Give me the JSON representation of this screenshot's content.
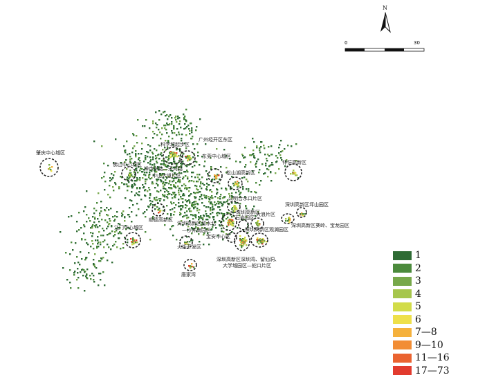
{
  "north_arrow": {
    "letter": "N",
    "icon": "north-arrow-icon"
  },
  "scale_bar": {
    "labels": [
      "0",
      "30"
    ]
  },
  "legend": {
    "items": [
      {
        "label": "1",
        "color": "#2e6b34"
      },
      {
        "label": "2",
        "color": "#4b8a3c"
      },
      {
        "label": "3",
        "color": "#77a84a"
      },
      {
        "label": "4",
        "color": "#a6c64c"
      },
      {
        "label": "5",
        "color": "#d2dc48"
      },
      {
        "label": "6",
        "color": "#eee04a"
      },
      {
        "label": "7—8",
        "color": "#f5b13c"
      },
      {
        "label": "9—10",
        "color": "#f28d34"
      },
      {
        "label": "11—16",
        "color": "#ea6330"
      },
      {
        "label": "17—73",
        "color": "#e23b2e"
      }
    ]
  },
  "places": [
    "肇庆中心城区",
    "科学城起步区",
    "广州经开区东区",
    "佛山中心城区",
    "禅市东路—天河路",
    "中山大道片区",
    "东莞中心城区",
    "松山湖高新区",
    "仲恺高新区",
    "公明合水口片区",
    "深圳高新区坪山园区",
    "顺德高新区",
    "深圳高新区",
    "石岩园区",
    "大浪片区",
    "深圳高新区留水北",
    "—沙井南园区",
    "深圳高新区观澜园区",
    "深圳高新区葵岭、宝龙园区",
    "江门中心城区",
    "宝安中心区",
    "火炬开发区",
    "深圳高新区深圳湾、留仙洞、",
    "大学城园区—蛇口片区",
    "唐家湾"
  ]
}
